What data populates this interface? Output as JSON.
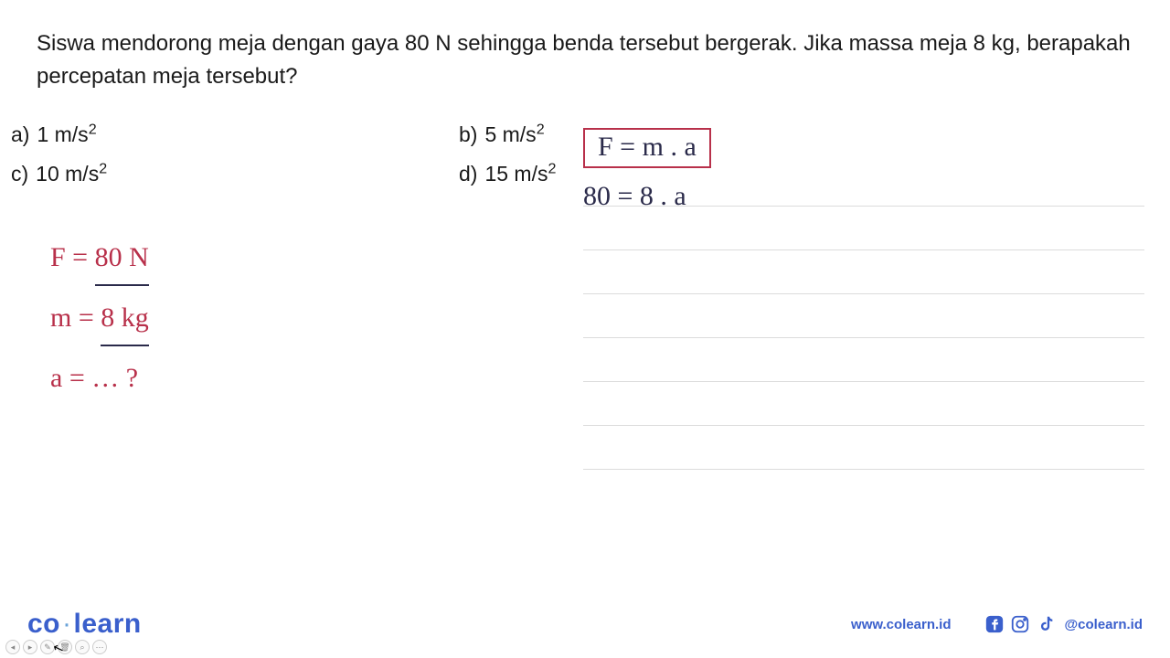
{
  "question": {
    "text": "Siswa mendorong meja dengan gaya 80 N sehingga benda tersebut bergerak. Jika massa meja 8 kg, berapakah percepatan meja tersebut?",
    "options": {
      "a": {
        "label": "a)",
        "value": "1 m/s",
        "exp": "2"
      },
      "b": {
        "label": "b)",
        "value": "5 m/s",
        "exp": "2"
      },
      "c": {
        "label": "c)",
        "value": "10 m/s",
        "exp": "2"
      },
      "d": {
        "label": "d)",
        "value": "15 m/s",
        "exp": "2"
      }
    }
  },
  "handwriting_left": {
    "line1_prefix": "F = ",
    "line1_value": "80 N",
    "line2_prefix": "m = ",
    "line2_value": "8 kg",
    "line3": "a = … ?"
  },
  "handwriting_right": {
    "formula": "F = m . a",
    "calc": "80 = 8 . a"
  },
  "ruled_lines": {
    "count": 7,
    "spacing_px": 48,
    "color": "#dcdcdc"
  },
  "styling": {
    "question_fontsize": 24,
    "question_color": "#1a1a1a",
    "handwriting_color_red": "#b8304a",
    "handwriting_color_dark": "#2a2a4a",
    "handwriting_fontsize": 30,
    "box_border_color": "#b8304a",
    "box_border_width": 2.5,
    "background_color": "#ffffff"
  },
  "footer": {
    "logo_co": "co",
    "logo_learn": "learn",
    "website": "www.colearn.id",
    "handle": "@colearn.id",
    "logo_color": "#3a5fcc",
    "icon_color": "#3a5fcc"
  },
  "toolbar": {
    "buttons": [
      "◂",
      "▸",
      "✎",
      "🗑",
      "⌕",
      "⋯"
    ]
  }
}
